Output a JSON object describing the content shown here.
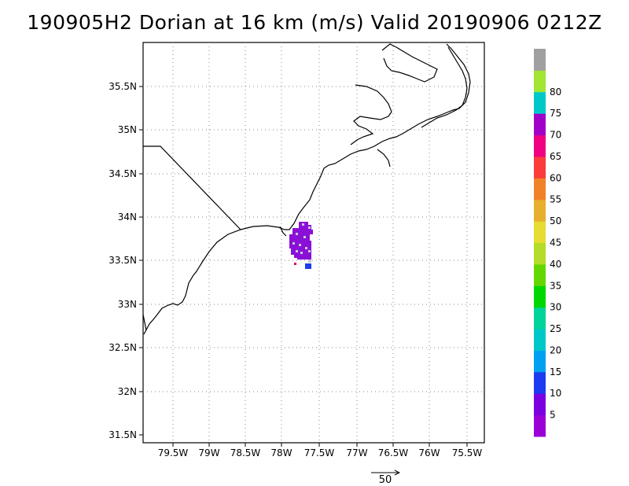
{
  "title": "190905H2 Dorian at 16 km (m/s) Valid 20190906  0212Z",
  "map": {
    "lat_labels": [
      "35.5N",
      "35N",
      "34.5N",
      "34N",
      "33.5N",
      "33N",
      "32.5N",
      "32N",
      "31.5N"
    ],
    "lon_labels": [
      "79.5W",
      "79W",
      "78.5W",
      "78W",
      "77.5W",
      "77W",
      "76.5W",
      "76W",
      "75.5W"
    ],
    "grid": "dotted",
    "wind_patch": {
      "center_lat": 33.7,
      "center_lon": -77.75,
      "dominant_speed_ms": 70,
      "note_color": "#8a10d8"
    }
  },
  "colorbar": {
    "tick_labels": [
      "5",
      "10",
      "15",
      "20",
      "25",
      "30",
      "35",
      "40",
      "45",
      "50",
      "55",
      "60",
      "65",
      "70",
      "75",
      "80"
    ],
    "colors": [
      "#9a00d8",
      "#7a00e0",
      "#1c3cf0",
      "#00a0f0",
      "#00c8c8",
      "#00d49a",
      "#00d700",
      "#64d700",
      "#b4dc28",
      "#e6dc32",
      "#e6af2d",
      "#f08228",
      "#fa3c3c",
      "#f00082",
      "#a000c8",
      "#00c8c8",
      "#a0e632",
      "#a0a0a0"
    ]
  },
  "vector_scale": {
    "label": "50"
  }
}
